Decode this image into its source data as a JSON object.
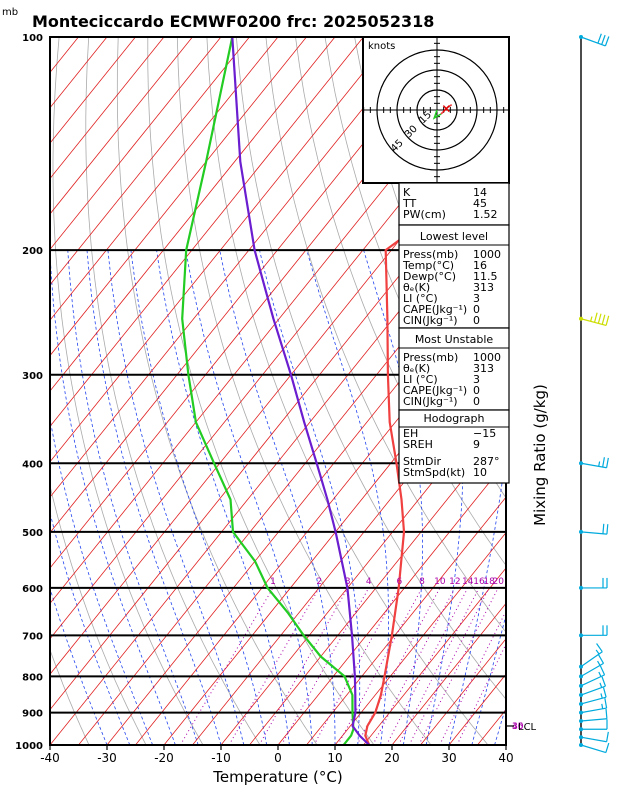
{
  "header": {
    "unit": "mb",
    "title": "Monteciccardo ECMWF0200 frc: 2025052318"
  },
  "colors": {
    "temperature": "#f04040",
    "dewpoint": "#22cc22",
    "parcel": "#6a1ecf",
    "isotherm": "#e02020",
    "dry_adiabat": "#aaaaaa",
    "moist_adiabat": "#2244ee",
    "mixing_ratio": "#aa00aa",
    "wind": "#00aadd",
    "wind_highlight": "#ccdd00"
  },
  "chart_data": {
    "type": "line",
    "title": "Monteciccardo ECMWF0200 frc: 2025052318",
    "xlabel": "Temperature (°C)",
    "ylabel": "mb",
    "xlim": [
      -40,
      40
    ],
    "ylim": [
      1000,
      100
    ],
    "y_scale": "log",
    "x_ticks": [
      "-40",
      "-30",
      "-20",
      "-10",
      "0",
      "10",
      "20",
      "30",
      "40"
    ],
    "y_ticks": [
      {
        "p": 100,
        "label": "100"
      },
      {
        "p": 200,
        "label": "200"
      },
      {
        "p": 300,
        "label": "300"
      },
      {
        "p": 400,
        "label": "400"
      },
      {
        "p": 500,
        "label": "500"
      },
      {
        "p": 600,
        "label": "600"
      },
      {
        "p": 700,
        "label": "700"
      },
      {
        "p": 800,
        "label": "800"
      },
      {
        "p": 900,
        "label": "900"
      },
      {
        "p": 1000,
        "label": "1000"
      }
    ],
    "series": [
      {
        "key": "temperature",
        "points": [
          [
            1000,
            16
          ],
          [
            970,
            14
          ],
          [
            940,
            13
          ],
          [
            900,
            12.5
          ],
          [
            850,
            11
          ],
          [
            800,
            9
          ],
          [
            700,
            4.5
          ],
          [
            600,
            -1
          ],
          [
            500,
            -8
          ],
          [
            450,
            -13
          ],
          [
            400,
            -19
          ],
          [
            350,
            -26
          ],
          [
            300,
            -33
          ],
          [
            250,
            -41
          ],
          [
            200,
            -51
          ],
          [
            175,
            -47
          ],
          [
            150,
            -40
          ],
          [
            125,
            -31
          ],
          [
            100,
            -20
          ]
        ]
      },
      {
        "key": "dewpoint",
        "points": [
          [
            1000,
            11.5
          ],
          [
            970,
            11.5
          ],
          [
            950,
            11
          ],
          [
            900,
            8.5
          ],
          [
            850,
            6
          ],
          [
            800,
            2
          ],
          [
            750,
            -5
          ],
          [
            700,
            -11
          ],
          [
            650,
            -17
          ],
          [
            600,
            -24
          ],
          [
            550,
            -30
          ],
          [
            500,
            -38
          ],
          [
            450,
            -43
          ],
          [
            400,
            -51
          ],
          [
            350,
            -60
          ],
          [
            300,
            -68
          ],
          [
            250,
            -77
          ],
          [
            200,
            -86
          ],
          [
            150,
            -95
          ],
          [
            100,
            -108
          ]
        ]
      },
      {
        "key": "parcel",
        "points": [
          [
            1000,
            16
          ],
          [
            970,
            13
          ],
          [
            940,
            10.4
          ],
          [
            900,
            9
          ],
          [
            850,
            6.5
          ],
          [
            800,
            3.8
          ],
          [
            700,
            -2.5
          ],
          [
            600,
            -10
          ],
          [
            500,
            -20
          ],
          [
            450,
            -26
          ],
          [
            400,
            -33
          ],
          [
            350,
            -41
          ],
          [
            300,
            -50
          ],
          [
            250,
            -61
          ],
          [
            200,
            -74
          ],
          [
            150,
            -89
          ],
          [
            100,
            -108
          ]
        ]
      }
    ],
    "mixing_ratio_labels": [
      "1",
      "2",
      "3",
      "4",
      "6",
      "8",
      "10",
      "12",
      "14",
      "16",
      "18",
      "20",
      "25",
      "30"
    ],
    "mixing_ratio_values": [
      1,
      2,
      3,
      4,
      6,
      8,
      10,
      12,
      14,
      16,
      18,
      20,
      25,
      30
    ],
    "theta_e_labels": [
      {
        "text": "30",
        "theta": 350
      },
      {
        "text": "35",
        "theta": 362
      },
      {
        "text": "40",
        "theta": 375
      }
    ],
    "lcl_pressure": 940,
    "lcl_label": "LCL",
    "mixing_ratio_axis_label": "Mixing Ratio (g/kg)",
    "hodograph": {
      "unit_label": "knots",
      "ring_labels": [
        "15",
        "30",
        "45"
      ],
      "ring_values": [
        15,
        30,
        45
      ],
      "trace_kt": [
        [
          0,
          0
        ],
        [
          -2,
          -6
        ],
        [
          3,
          -3
        ],
        [
          5,
          -1
        ],
        [
          8,
          2
        ],
        [
          11,
          4
        ]
      ]
    },
    "wind_barbs": [
      {
        "p": 1000,
        "spd": 10,
        "dir": 287
      },
      {
        "p": 975,
        "spd": 10,
        "dir": 280
      },
      {
        "p": 950,
        "spd": 10,
        "dir": 270
      },
      {
        "p": 925,
        "spd": 12,
        "dir": 265
      },
      {
        "p": 900,
        "spd": 15,
        "dir": 260
      },
      {
        "p": 875,
        "spd": 15,
        "dir": 255
      },
      {
        "p": 850,
        "spd": 15,
        "dir": 250
      },
      {
        "p": 825,
        "spd": 15,
        "dir": 245
      },
      {
        "p": 800,
        "spd": 15,
        "dir": 240
      },
      {
        "p": 775,
        "spd": 15,
        "dir": 235
      },
      {
        "p": 700,
        "spd": 20,
        "dir": 270
      },
      {
        "p": 600,
        "spd": 20,
        "dir": 270
      },
      {
        "p": 500,
        "spd": 20,
        "dir": 275
      },
      {
        "p": 400,
        "spd": 25,
        "dir": 280
      },
      {
        "p": 250,
        "spd": 45,
        "dir": 285,
        "hl": true
      },
      {
        "p": 100,
        "spd": 30,
        "dir": 290
      }
    ]
  },
  "indices": {
    "block1": [
      {
        "label": "K",
        "value": "14"
      },
      {
        "label": "TT",
        "value": "45"
      },
      {
        "label": "PW(cm)",
        "value": "1.52"
      }
    ],
    "lowest": {
      "heading": "Lowest level",
      "rows": [
        {
          "label": "Press(mb)",
          "value": "1000"
        },
        {
          "label": "Temp(°C)",
          "value": "16"
        },
        {
          "label": "Dewp(°C)",
          "value": "11.5"
        },
        {
          "label": "θₑ(K)",
          "value": "313"
        },
        {
          "label": "LI (°C)",
          "value": "3"
        },
        {
          "label": "CAPE(Jkg⁻¹)",
          "value": "0"
        },
        {
          "label": "CIN(Jkg⁻¹)",
          "value": "0"
        }
      ]
    },
    "most_unstable": {
      "heading": "Most Unstable",
      "rows": [
        {
          "label": "Press(mb)",
          "value": "1000"
        },
        {
          "label": "θₑ(K)",
          "value": "313"
        },
        {
          "label": "LI (°C)",
          "value": "3"
        },
        {
          "label": "CAPE(Jkg⁻¹)",
          "value": "0"
        },
        {
          "label": "CIN(Jkg⁻¹)",
          "value": "0"
        }
      ]
    },
    "hodograph_block": {
      "heading": "Hodograph",
      "rows": [
        {
          "label": "EH",
          "value": "−15"
        },
        {
          "label": "SREH",
          "value": "9"
        }
      ],
      "rows2": [
        {
          "label": "StmDir",
          "value": "287°"
        },
        {
          "label": "StmSpd(kt)",
          "value": "10"
        }
      ]
    }
  }
}
